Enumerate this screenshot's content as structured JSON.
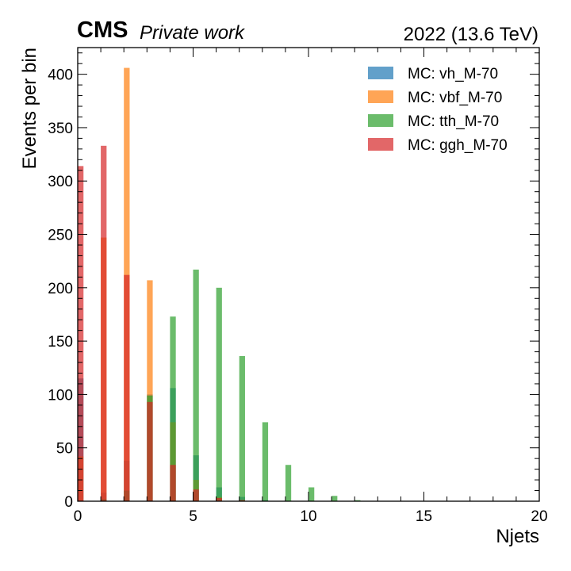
{
  "header": {
    "experiment": "CMS",
    "label": "Private work",
    "energy": "2022 (13.6 TeV)"
  },
  "chart_data": {
    "type": "bar",
    "histogram": true,
    "xlabel": "Njets",
    "ylabel": "Events per bin",
    "xlim": [
      0,
      20
    ],
    "ylim": [
      0,
      425
    ],
    "xticks": [
      0,
      5,
      10,
      15,
      20
    ],
    "yticks": [
      0,
      50,
      100,
      150,
      200,
      250,
      300,
      350,
      400
    ],
    "bin_edges": [
      0,
      0.5,
      1,
      1.5,
      2,
      2.5,
      3,
      3.5,
      4,
      4.5,
      5,
      5.5,
      6,
      6.5,
      7,
      7.5,
      8,
      8.5,
      9,
      9.5,
      10,
      10.5,
      11,
      11.5,
      12,
      12.5,
      13,
      13.5,
      14,
      14.5,
      15,
      15.5,
      16,
      16.5,
      17,
      17.5,
      18,
      18.5,
      19,
      19.5,
      20
    ],
    "bar_fraction": 0.5,
    "legend_position": "top-right",
    "grid": false,
    "series": [
      {
        "name": "MC: vh_M-70",
        "color": "#1f77b4",
        "opacity": 0.7,
        "values": [
          115,
          0,
          8,
          0,
          38,
          0,
          100,
          0,
          106,
          0,
          43,
          0,
          13,
          0,
          4,
          0,
          1,
          0,
          0,
          0,
          0,
          0,
          0,
          0,
          0,
          0,
          0,
          0,
          0,
          0,
          0,
          0,
          0,
          0,
          0,
          0,
          0,
          0,
          0,
          0
        ]
      },
      {
        "name": "MC: vbf_M-70",
        "color": "#ff7f0e",
        "opacity": 0.7,
        "values": [
          42,
          0,
          247,
          0,
          406,
          0,
          207,
          0,
          74,
          0,
          20,
          0,
          4,
          0,
          1,
          0,
          0,
          0,
          0,
          0,
          0,
          0,
          0,
          0,
          0,
          0,
          0,
          0,
          0,
          0,
          0,
          0,
          0,
          0,
          0,
          0,
          0,
          0,
          0,
          0
        ]
      },
      {
        "name": "MC: tth_M-70",
        "color": "#2ca02c",
        "opacity": 0.7,
        "values": [
          0,
          0,
          2,
          0,
          10,
          0,
          99,
          0,
          173,
          0,
          217,
          0,
          200,
          0,
          136,
          0,
          74,
          0,
          34,
          0,
          13,
          0,
          5,
          0,
          1,
          0,
          0,
          0,
          0,
          0,
          0,
          0,
          0,
          0,
          0,
          0,
          0,
          0,
          0,
          0
        ]
      },
      {
        "name": "MC: ggh_M-70",
        "color": "#d62728",
        "opacity": 0.7,
        "values": [
          314,
          0,
          333,
          0,
          212,
          0,
          93,
          0,
          34,
          0,
          11,
          0,
          3,
          0,
          1,
          0,
          0,
          0,
          0,
          0,
          0,
          0,
          0,
          0,
          0,
          0,
          0,
          0,
          0,
          0,
          0,
          0,
          0,
          0,
          0,
          0,
          0,
          0,
          0,
          0
        ]
      }
    ]
  }
}
